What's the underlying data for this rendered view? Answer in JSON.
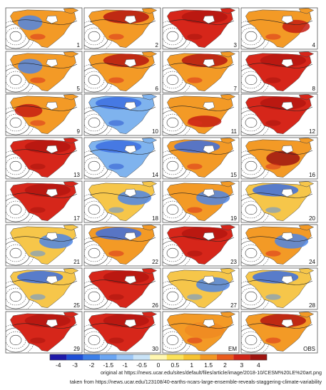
{
  "map": {
    "panels": [
      {
        "label": "1",
        "anomaly": "warm",
        "pattern": "west-cool"
      },
      {
        "label": "2",
        "anomaly": "warm",
        "pattern": "north-hot"
      },
      {
        "label": "3",
        "anomaly": "hot",
        "pattern": "north-hot"
      },
      {
        "label": "4",
        "anomaly": "warm",
        "pattern": "east-hot"
      },
      {
        "label": "5",
        "anomaly": "warm",
        "pattern": "west-cool"
      },
      {
        "label": "6",
        "anomaly": "warm",
        "pattern": "north-hot"
      },
      {
        "label": "7",
        "anomaly": "warm",
        "pattern": "north-hot"
      },
      {
        "label": "8",
        "anomaly": "hot",
        "pattern": "north-hot"
      },
      {
        "label": "9",
        "anomaly": "warm",
        "pattern": "west-hot"
      },
      {
        "label": "10",
        "anomaly": "cool",
        "pattern": "north-cool"
      },
      {
        "label": "11",
        "anomaly": "warm",
        "pattern": "south-hot"
      },
      {
        "label": "12",
        "anomaly": "hot",
        "pattern": "north-hot"
      },
      {
        "label": "13",
        "anomaly": "hot",
        "pattern": "north-hot"
      },
      {
        "label": "14",
        "anomaly": "cool",
        "pattern": "north-cool"
      },
      {
        "label": "15",
        "anomaly": "warm",
        "pattern": "north-cool"
      },
      {
        "label": "16",
        "anomaly": "warm",
        "pattern": "center-hot"
      },
      {
        "label": "17",
        "anomaly": "hot",
        "pattern": "north-hot"
      },
      {
        "label": "18",
        "anomaly": "mixed",
        "pattern": "east-cool"
      },
      {
        "label": "19",
        "anomaly": "warm",
        "pattern": "east-cool"
      },
      {
        "label": "20",
        "anomaly": "mixed",
        "pattern": "north-cool"
      },
      {
        "label": "21",
        "anomaly": "mixed",
        "pattern": "east-cool"
      },
      {
        "label": "22",
        "anomaly": "warm",
        "pattern": "north-cool"
      },
      {
        "label": "23",
        "anomaly": "hot",
        "pattern": "north-hot"
      },
      {
        "label": "24",
        "anomaly": "warm",
        "pattern": "east-cool"
      },
      {
        "label": "25",
        "anomaly": "mixed",
        "pattern": "north-cool"
      },
      {
        "label": "26",
        "anomaly": "hot",
        "pattern": "north-hot"
      },
      {
        "label": "27",
        "anomaly": "mixed",
        "pattern": "east-cool"
      },
      {
        "label": "28",
        "anomaly": "mixed",
        "pattern": "north-cool"
      },
      {
        "label": "29",
        "anomaly": "hot",
        "pattern": "north-hot"
      },
      {
        "label": "30",
        "anomaly": "hot",
        "pattern": "north-hot"
      },
      {
        "label": "EM",
        "anomaly": "warm",
        "pattern": "uniform"
      },
      {
        "label": "OBS",
        "anomaly": "warm",
        "pattern": "north-hot"
      }
    ]
  },
  "colorbar": {
    "ticks": [
      "-4",
      "-3",
      "-2",
      "-1.5",
      "-1",
      "-0.5",
      "0",
      "0.5",
      "1",
      "1.5",
      "2",
      "3",
      "4"
    ],
    "colors": [
      "#1e1aa8",
      "#1f4fd6",
      "#3c7fe8",
      "#6aa5f2",
      "#9cc6f5",
      "#c9e3f7",
      "#fff7b0",
      "#fbe25a",
      "#f7c330",
      "#f29724",
      "#e95b1c",
      "#cf2418",
      "#9e1410"
    ]
  },
  "credits": {
    "line1": "original at   https://news.ucar.edu/sites/default/files/article/image/2018-10/CESM%20LE%20art.png",
    "line2": "taken from  https://news.ucar.edu/123108/40-earths-ncars-large-ensemble-reveals-staggering-climate-variability"
  }
}
